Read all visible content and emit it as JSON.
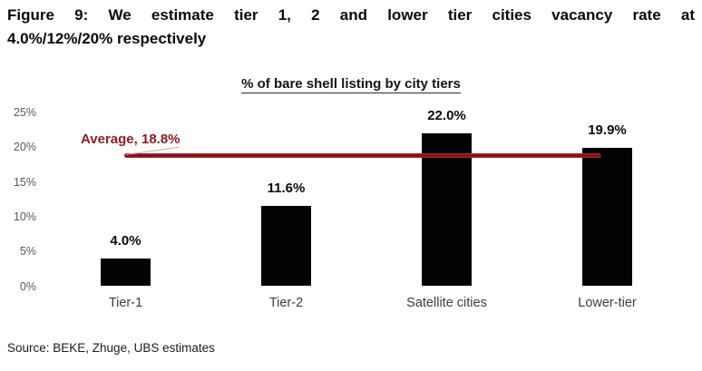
{
  "figure": {
    "title_line1": "Figure 9: We estimate tier 1, 2 and lower tier cities vacancy rate at",
    "title_line2": "4.0%/12%/20% respectively",
    "source": "Source: BEKE, Zhuge, UBS estimates"
  },
  "chart_data": {
    "type": "bar",
    "title": "% of bare shell listing by city tiers",
    "categories": [
      "Tier-1",
      "Tier-2",
      "Satellite cities",
      "Lower-tier"
    ],
    "values": [
      4.0,
      11.6,
      22.0,
      19.9
    ],
    "value_labels": [
      "4.0%",
      "11.6%",
      "22.0%",
      "19.9%"
    ],
    "ylabel": "",
    "xlabel": "",
    "ylim": [
      0,
      25
    ],
    "y_tick_values": [
      25,
      20,
      15,
      10,
      5,
      0
    ],
    "y_tick_labels": [
      "25%",
      "20%",
      "15%",
      "10%",
      "5%",
      "0%"
    ],
    "grid": false,
    "legend": "none",
    "bar_color": "#030303",
    "average_line": {
      "label": "Average, 18.8%",
      "value": 18.8,
      "color": "#921b1e"
    }
  }
}
